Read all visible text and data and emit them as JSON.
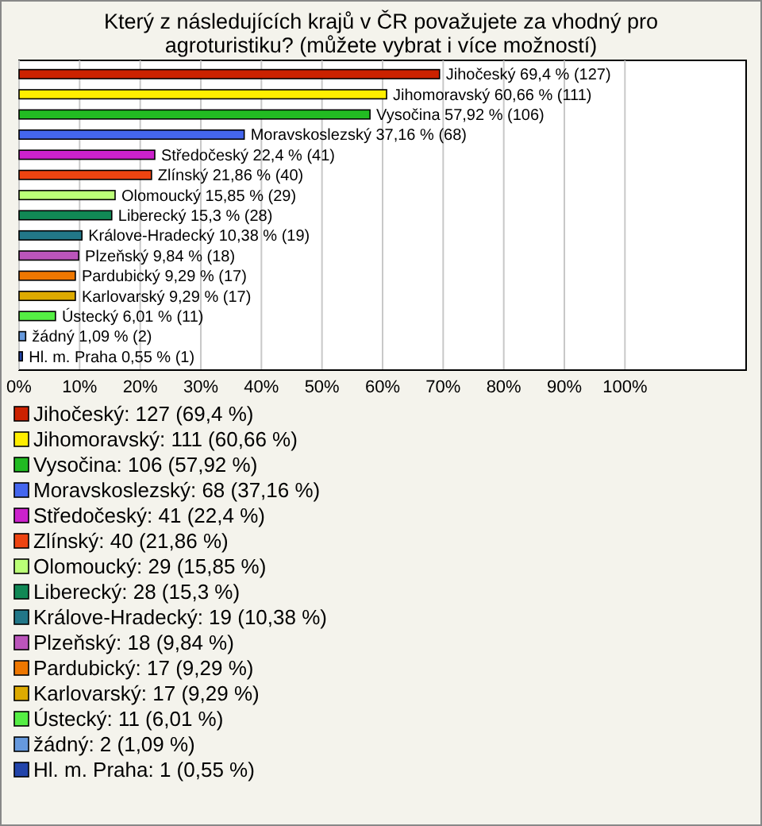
{
  "chart_data": {
    "type": "bar",
    "orientation": "horizontal",
    "title": "Který z následujících krajů v ČR považujete za vhodný pro agroturistiku? (můžete vybrat i více možností)",
    "categories": [
      null
    ],
    "series": [
      {
        "name": "Jihočeský: 127 (69,4 %)",
        "color": "#cc2200",
        "values": [
          69.4
        ],
        "value_labels": [
          "Jihočeský 69,4 % (127)"
        ]
      },
      {
        "name": "Jihomoravský: 111 (60,66 %)",
        "color": "#ffee00",
        "values": [
          60.66
        ],
        "value_labels": [
          "Jihomoravský 60,66 % (111)"
        ]
      },
      {
        "name": "Vysočina: 106 (57,92 %)",
        "color": "#22bb22",
        "values": [
          57.92
        ],
        "value_labels": [
          "Vysočina 57,92 % (106)"
        ]
      },
      {
        "name": "Moravskoslezský: 68 (37,16 %)",
        "color": "#4466ee",
        "values": [
          37.16
        ],
        "value_labels": [
          "Moravskoslezský 37,16 % (68)"
        ]
      },
      {
        "name": "Středočeský: 41 (22,4 %)",
        "color": "#cc22cc",
        "values": [
          22.4
        ],
        "value_labels": [
          "Středočeský 22,4 % (41)"
        ]
      },
      {
        "name": "Zlínský: 40 (21,86 %)",
        "color": "#ee4411",
        "values": [
          21.86
        ],
        "value_labels": [
          "Zlínský 21,86 % (40)"
        ]
      },
      {
        "name": "Olomoucký: 29 (15,85 %)",
        "color": "#bbff77",
        "values": [
          15.85
        ],
        "value_labels": [
          "Olomoucký 15,85 % (29)"
        ]
      },
      {
        "name": "Liberecký: 28 (15,3 %)",
        "color": "#118855",
        "values": [
          15.3
        ],
        "value_labels": [
          "Liberecký 15,3 % (28)"
        ]
      },
      {
        "name": "Králove-Hradecký: 19 (10,38 %)",
        "color": "#227788",
        "values": [
          10.38
        ],
        "value_labels": [
          "Králove-Hradecký 10,38 % (19)"
        ]
      },
      {
        "name": "Plzeňský: 18 (9,84 %)",
        "color": "#bb55bb",
        "values": [
          9.84
        ],
        "value_labels": [
          "Plzeňský 9,84 % (18)"
        ]
      },
      {
        "name": "Pardubický: 17 (9,29 %)",
        "color": "#ee7700",
        "values": [
          9.29
        ],
        "value_labels": [
          "Pardubický 9,29 % (17)"
        ]
      },
      {
        "name": "Karlovarský: 17 (9,29 %)",
        "color": "#ddaa00",
        "values": [
          9.29
        ],
        "value_labels": [
          "Karlovarský 9,29 % (17)"
        ]
      },
      {
        "name": "Ústecký: 11 (6,01 %)",
        "color": "#55ee44",
        "values": [
          6.01
        ],
        "value_labels": [
          "Ústecký 6,01 % (11)"
        ]
      },
      {
        "name": "žádný: 2 (1,09 %)",
        "color": "#6699dd",
        "values": [
          1.09
        ],
        "value_labels": [
          "žádný 1,09 % (2)"
        ]
      },
      {
        "name": "Hl. m. Praha: 1 (0,55 %)",
        "color": "#2244aa",
        "values": [
          0.55
        ],
        "value_labels": [
          "Hl. m. Praha 0,55 % (1)"
        ]
      }
    ],
    "xlim": [
      0,
      120
    ],
    "xticks": [
      {
        "value": 0,
        "label": "0%"
      },
      {
        "value": 10,
        "label": "10%"
      },
      {
        "value": 20,
        "label": "20%"
      },
      {
        "value": 30,
        "label": "30%"
      },
      {
        "value": 40,
        "label": "40%"
      },
      {
        "value": 50,
        "label": "50%"
      },
      {
        "value": 60,
        "label": "60%"
      },
      {
        "value": 70,
        "label": "70%"
      },
      {
        "value": 80,
        "label": "80%"
      },
      {
        "value": 90,
        "label": "90%"
      },
      {
        "value": 100,
        "label": "100%"
      }
    ],
    "grid": "x",
    "legend": "bottom"
  }
}
